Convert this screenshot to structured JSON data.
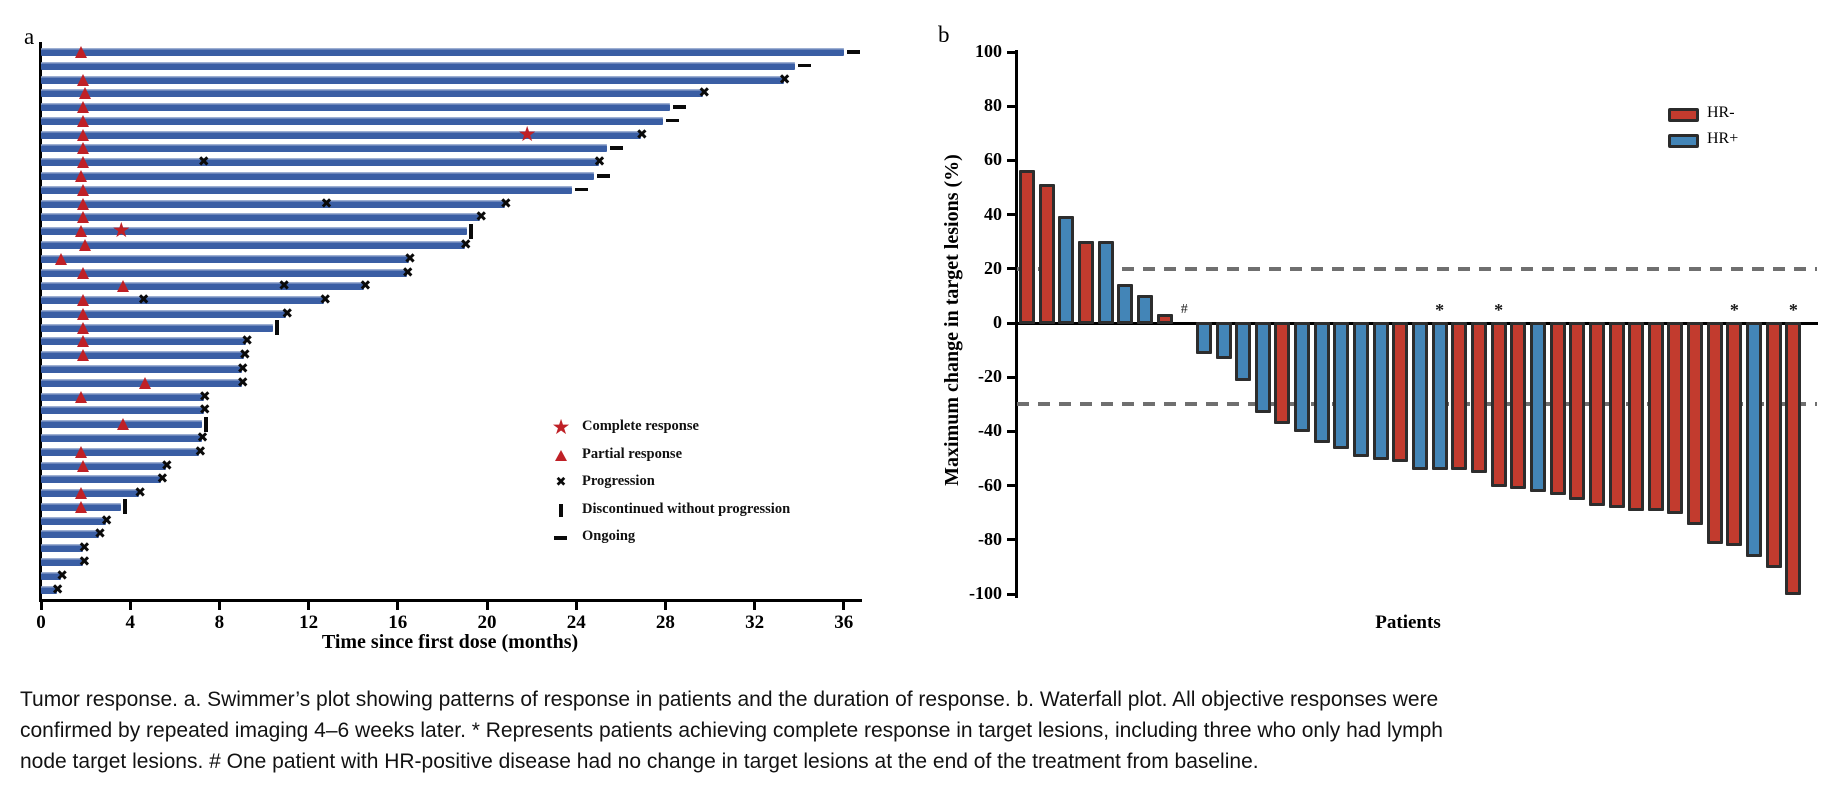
{
  "colors": {
    "swimmer_bar": "#3a5ea4",
    "response_red": "#bf2026",
    "marker_black": "#0a0a0a",
    "hr_neg": "#c23b2e",
    "hr_pos": "#4385b7",
    "bar_outline": "#2d2d2d",
    "dashed_line": "#6f6f6f"
  },
  "chart_data": [
    {
      "id": "swimmer",
      "type": "bar",
      "orientation": "horizontal",
      "panel_label": "a",
      "xlabel": "Time since first dose (months)",
      "x_ticks": [
        0,
        4,
        8,
        12,
        16,
        20,
        24,
        28,
        32,
        36
      ],
      "xlim": [
        0,
        37
      ],
      "legend": [
        {
          "marker": "star",
          "label": "Complete response"
        },
        {
          "marker": "triangle",
          "label": "Partial response"
        },
        {
          "marker": "x",
          "label": "Progression"
        },
        {
          "marker": "bar",
          "label": "Discontinued without progression"
        },
        {
          "marker": "dash",
          "label": "Ongoing"
        }
      ],
      "patients": [
        {
          "duration": 36.0,
          "end": "ongoing",
          "events": [
            {
              "type": "partial_response",
              "month": 1.8
            }
          ]
        },
        {
          "duration": 33.8,
          "end": "ongoing",
          "events": []
        },
        {
          "duration": 33.3,
          "end": "progression",
          "events": [
            {
              "type": "partial_response",
              "month": 1.9
            }
          ]
        },
        {
          "duration": 29.7,
          "end": "progression",
          "events": [
            {
              "type": "partial_response",
              "month": 2.0
            }
          ]
        },
        {
          "duration": 28.2,
          "end": "ongoing",
          "events": [
            {
              "type": "partial_response",
              "month": 1.9
            }
          ]
        },
        {
          "duration": 27.9,
          "end": "ongoing",
          "events": [
            {
              "type": "partial_response",
              "month": 1.9
            }
          ]
        },
        {
          "duration": 26.9,
          "end": "progression",
          "events": [
            {
              "type": "partial_response",
              "month": 1.9
            },
            {
              "type": "complete_response",
              "month": 21.8
            }
          ]
        },
        {
          "duration": 25.4,
          "end": "ongoing",
          "events": [
            {
              "type": "partial_response",
              "month": 1.9
            }
          ]
        },
        {
          "duration": 25.0,
          "end": "progression",
          "events": [
            {
              "type": "partial_response",
              "month": 1.9
            },
            {
              "type": "progression",
              "month": 7.3
            }
          ]
        },
        {
          "duration": 24.8,
          "end": "ongoing",
          "events": [
            {
              "type": "partial_response",
              "month": 1.8
            }
          ]
        },
        {
          "duration": 23.8,
          "end": "ongoing",
          "events": [
            {
              "type": "partial_response",
              "month": 1.9
            }
          ]
        },
        {
          "duration": 20.8,
          "end": "progression",
          "events": [
            {
              "type": "partial_response",
              "month": 1.9
            },
            {
              "type": "progression",
              "month": 12.8
            }
          ]
        },
        {
          "duration": 19.7,
          "end": "progression",
          "events": [
            {
              "type": "partial_response",
              "month": 1.9
            }
          ]
        },
        {
          "duration": 19.1,
          "end": "discontinued",
          "events": [
            {
              "type": "partial_response",
              "month": 1.8
            },
            {
              "type": "complete_response",
              "month": 3.6
            }
          ]
        },
        {
          "duration": 19.0,
          "end": "progression",
          "events": [
            {
              "type": "partial_response",
              "month": 2.0
            }
          ]
        },
        {
          "duration": 16.5,
          "end": "progression",
          "events": [
            {
              "type": "partial_response",
              "month": 0.9
            }
          ]
        },
        {
          "duration": 16.4,
          "end": "progression",
          "events": [
            {
              "type": "partial_response",
              "month": 1.9
            }
          ]
        },
        {
          "duration": 14.5,
          "end": "progression",
          "events": [
            {
              "type": "partial_response",
              "month": 3.7
            },
            {
              "type": "progression",
              "month": 10.9
            }
          ]
        },
        {
          "duration": 12.7,
          "end": "progression",
          "events": [
            {
              "type": "partial_response",
              "month": 1.9
            },
            {
              "type": "progression",
              "month": 4.6
            }
          ]
        },
        {
          "duration": 11.0,
          "end": "progression",
          "events": [
            {
              "type": "partial_response",
              "month": 1.9
            }
          ]
        },
        {
          "duration": 10.4,
          "end": "discontinued",
          "events": [
            {
              "type": "partial_response",
              "month": 1.9
            }
          ]
        },
        {
          "duration": 9.2,
          "end": "progression",
          "events": [
            {
              "type": "partial_response",
              "month": 1.9
            }
          ]
        },
        {
          "duration": 9.1,
          "end": "progression",
          "events": [
            {
              "type": "partial_response",
              "month": 1.9
            }
          ]
        },
        {
          "duration": 9.0,
          "end": "progression",
          "events": []
        },
        {
          "duration": 9.0,
          "end": "progression",
          "events": [
            {
              "type": "partial_response",
              "month": 4.7
            }
          ]
        },
        {
          "duration": 7.3,
          "end": "progression",
          "events": [
            {
              "type": "partial_response",
              "month": 1.8
            }
          ]
        },
        {
          "duration": 7.3,
          "end": "progression",
          "events": []
        },
        {
          "duration": 7.2,
          "end": "discontinued",
          "events": [
            {
              "type": "partial_response",
              "month": 3.7
            }
          ]
        },
        {
          "duration": 7.2,
          "end": "progression",
          "events": []
        },
        {
          "duration": 7.1,
          "end": "progression",
          "events": [
            {
              "type": "partial_response",
              "month": 1.8
            }
          ]
        },
        {
          "duration": 5.6,
          "end": "progression",
          "events": [
            {
              "type": "partial_response",
              "month": 1.9
            }
          ]
        },
        {
          "duration": 5.4,
          "end": "progression",
          "events": []
        },
        {
          "duration": 4.4,
          "end": "progression",
          "events": [
            {
              "type": "partial_response",
              "month": 1.8
            }
          ]
        },
        {
          "duration": 3.6,
          "end": "discontinued",
          "events": [
            {
              "type": "partial_response",
              "month": 1.8
            }
          ]
        },
        {
          "duration": 2.9,
          "end": "progression",
          "events": []
        },
        {
          "duration": 2.6,
          "end": "progression",
          "events": []
        },
        {
          "duration": 1.9,
          "end": "progression",
          "events": []
        },
        {
          "duration": 1.9,
          "end": "progression",
          "events": []
        },
        {
          "duration": 0.9,
          "end": "progression",
          "events": []
        },
        {
          "duration": 0.7,
          "end": "progression",
          "events": []
        }
      ]
    },
    {
      "id": "waterfall",
      "type": "bar",
      "panel_label": "b",
      "ylabel": "Maximum change in target lesions (%)",
      "xlabel": "Patients",
      "y_ticks": [
        100,
        80,
        60,
        40,
        20,
        0,
        -20,
        -40,
        -60,
        -80,
        -100
      ],
      "ylim": [
        -100,
        100
      ],
      "reference_lines": [
        20,
        -30
      ],
      "legend": [
        {
          "label": "HR-",
          "key": "hr_neg"
        },
        {
          "label": "HR+",
          "key": "hr_pos"
        }
      ],
      "bars": [
        {
          "value": 56,
          "group": "HR-"
        },
        {
          "value": 51,
          "group": "HR-"
        },
        {
          "value": 39,
          "group": "HR+"
        },
        {
          "value": 30,
          "group": "HR-"
        },
        {
          "value": 30,
          "group": "HR+"
        },
        {
          "value": 14,
          "group": "HR+"
        },
        {
          "value": 10,
          "group": "HR+"
        },
        {
          "value": 3,
          "group": "HR-"
        },
        {
          "value": 0,
          "group": "HR+",
          "note": "#"
        },
        {
          "value": -11,
          "group": "HR+"
        },
        {
          "value": -13,
          "group": "HR+"
        },
        {
          "value": -21,
          "group": "HR+"
        },
        {
          "value": -33,
          "group": "HR+"
        },
        {
          "value": -37,
          "group": "HR-"
        },
        {
          "value": -40,
          "group": "HR+"
        },
        {
          "value": -44,
          "group": "HR+"
        },
        {
          "value": -46,
          "group": "HR+"
        },
        {
          "value": -49,
          "group": "HR+"
        },
        {
          "value": -50,
          "group": "HR+"
        },
        {
          "value": -51,
          "group": "HR-"
        },
        {
          "value": -54,
          "group": "HR+"
        },
        {
          "value": -54,
          "group": "HR+",
          "note": "*"
        },
        {
          "value": -54,
          "group": "HR-"
        },
        {
          "value": -55,
          "group": "HR-"
        },
        {
          "value": -60,
          "group": "HR-",
          "note": "*"
        },
        {
          "value": -61,
          "group": "HR-"
        },
        {
          "value": -62,
          "group": "HR+"
        },
        {
          "value": -63,
          "group": "HR-"
        },
        {
          "value": -65,
          "group": "HR-"
        },
        {
          "value": -67,
          "group": "HR-"
        },
        {
          "value": -68,
          "group": "HR-"
        },
        {
          "value": -69,
          "group": "HR-"
        },
        {
          "value": -69,
          "group": "HR-"
        },
        {
          "value": -70,
          "group": "HR-"
        },
        {
          "value": -74,
          "group": "HR-"
        },
        {
          "value": -81,
          "group": "HR-"
        },
        {
          "value": -82,
          "group": "HR-",
          "note": "*"
        },
        {
          "value": -86,
          "group": "HR+"
        },
        {
          "value": -90,
          "group": "HR-"
        },
        {
          "value": -100,
          "group": "HR-",
          "note": "*"
        }
      ]
    }
  ],
  "caption": {
    "lines": [
      "Tumor response. a. Swimmer’s plot showing patterns of response in patients and the duration of response. b. Waterfall plot. All objective responses were",
      "confirmed by repeated imaging 4–6 weeks later. * Represents patients achieving complete response in target lesions, including three who only had lymph",
      "node target lesions. # One patient with HR-positive disease had no change in target lesions at the end of the treatment from baseline."
    ]
  }
}
